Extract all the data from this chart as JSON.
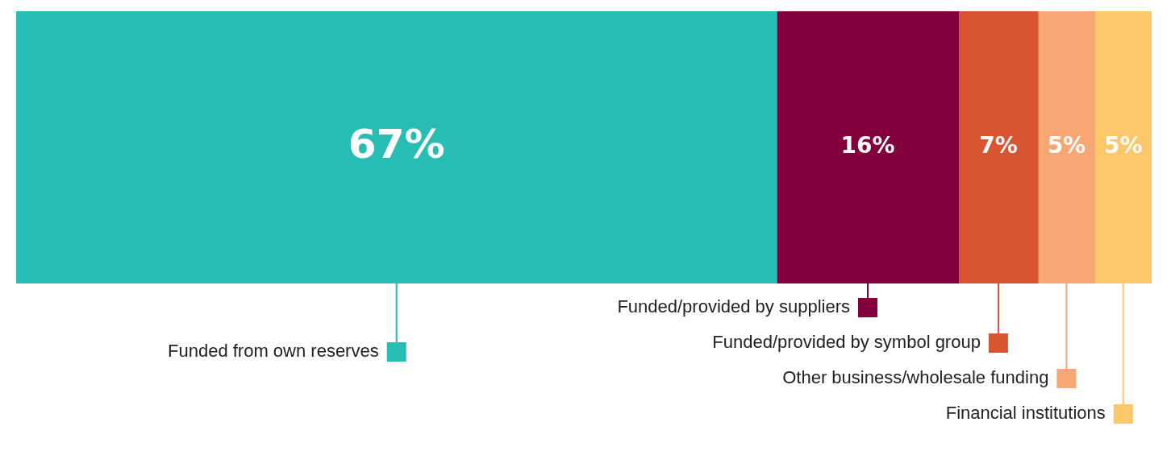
{
  "chart_data": {
    "type": "bar",
    "orientation": "horizontal",
    "stacked": true,
    "categories": [
      null
    ],
    "grid": false,
    "legend": "bottom",
    "series": [
      {
        "name": "Funded from own reserves",
        "color": "#27bdb4",
        "values": [
          67
        ],
        "value_labels": [
          "67%"
        ]
      },
      {
        "name": "Funded/provided by suppliers",
        "color": "#82003c",
        "values": [
          16
        ],
        "value_labels": [
          "16%"
        ]
      },
      {
        "name": "Funded/provided by symbol group",
        "color": "#d95532",
        "values": [
          7
        ],
        "value_labels": [
          "7%"
        ]
      },
      {
        "name": "Other business/wholesale funding",
        "color": "#f8a774",
        "values": [
          5
        ],
        "value_labels": [
          "5%"
        ]
      },
      {
        "name": "Financial institutions",
        "color": "#fdc76b",
        "values": [
          5
        ],
        "value_labels": [
          "5%"
        ]
      }
    ]
  }
}
